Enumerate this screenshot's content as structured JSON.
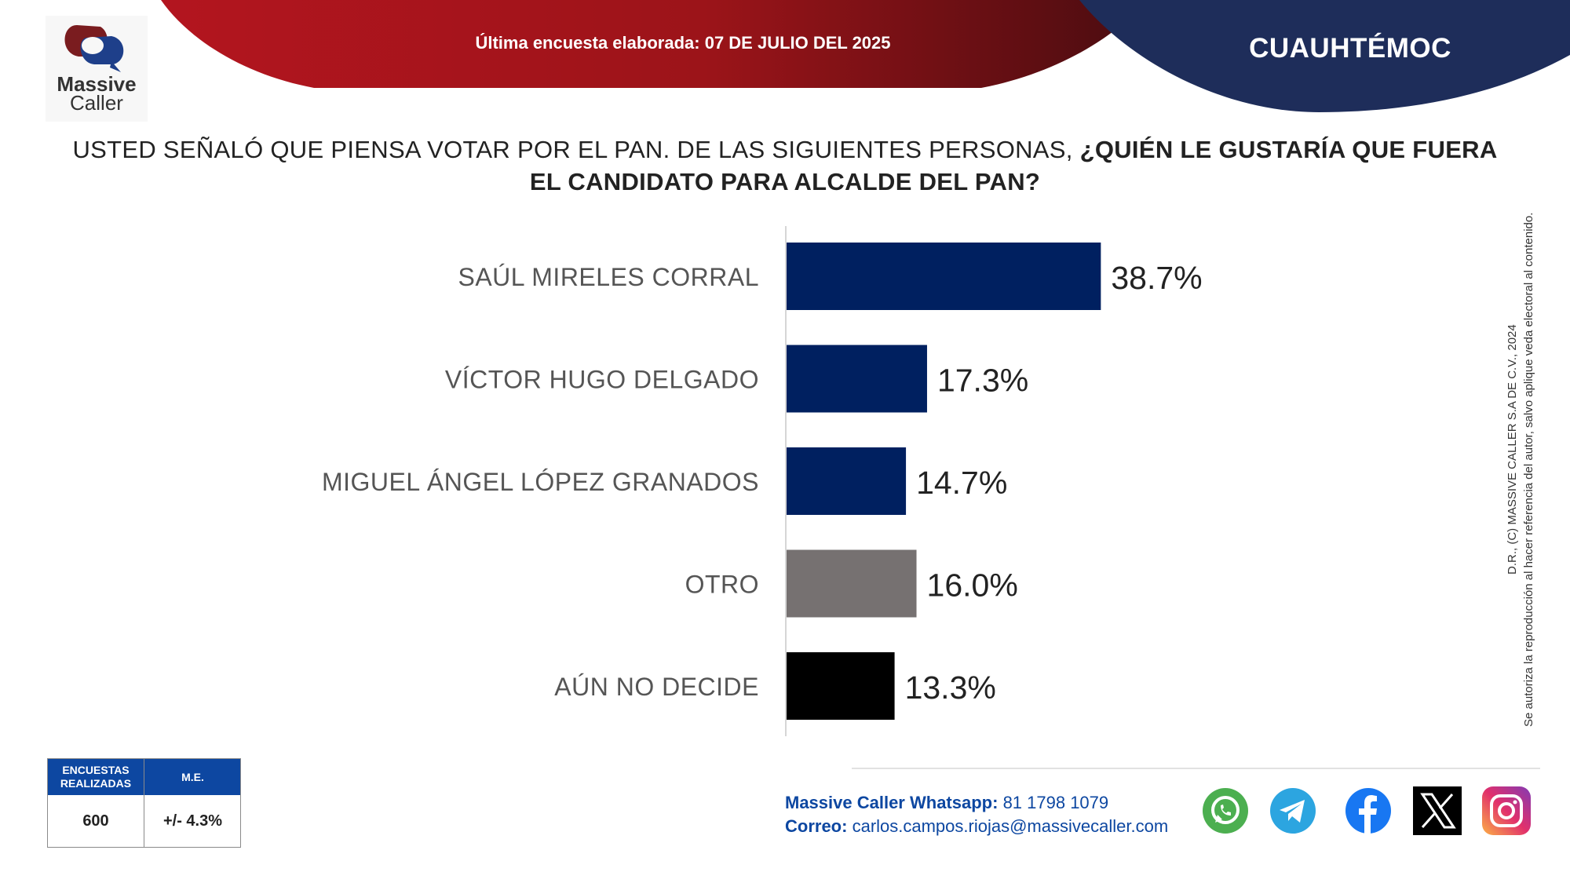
{
  "header": {
    "last_survey_label": "Última encuesta elaborada:",
    "last_survey_date": "07 DE JULIO DEL 2025",
    "region": "CUAUHTÉMOC"
  },
  "logo": {
    "line1": "Massive",
    "line2": "Caller"
  },
  "question": {
    "normal": "USTED SEÑALÓ QUE PIENSA VOTAR POR EL PAN. DE LAS SIGUIENTES PERSONAS, ",
    "bold": "¿QUIÉN LE GUSTARÍA QUE FUERA EL CANDIDATO PARA ALCALDE DEL PAN?"
  },
  "chart_data": {
    "type": "bar",
    "orientation": "horizontal",
    "categories": [
      "SAÚL MIRELES CORRAL",
      "VÍCTOR HUGO DELGADO",
      "MIGUEL ÁNGEL LÓPEZ GRANADOS",
      "OTRO",
      "AÚN NO DECIDE"
    ],
    "values": [
      38.7,
      17.3,
      14.7,
      16.0,
      13.3
    ],
    "value_labels": [
      "38.7%",
      "17.3%",
      "14.7%",
      "16.0%",
      "13.3%"
    ],
    "colors": [
      "#002060",
      "#002060",
      "#002060",
      "#767171",
      "#000000"
    ],
    "xlim": [
      0,
      100
    ],
    "grid": false
  },
  "copyright": {
    "line1": "D.R., (C) MASSIVE CALLER S.A DE C.V., 2024",
    "line2": "Se autoriza la reproducción al hacer referencia del autor, salvo aplique veda electoral al contenido."
  },
  "stats": {
    "surveys_header": "ENCUESTAS REALIZADAS",
    "me_header": "M.E.",
    "surveys_value": "600",
    "me_value": "+/- 4.3%"
  },
  "contact": {
    "whatsapp_label": "Massive Caller Whatsapp:",
    "whatsapp_number": "81 1798 1079",
    "email_label": "Correo:",
    "email": "carlos.campos.riojas@massivecaller.com"
  },
  "colors": {
    "header_red": "#b3151f",
    "header_navy": "#1e2d5a",
    "accent_blue": "#0d47a1"
  },
  "social_icons": [
    "whatsapp-icon",
    "telegram-icon",
    "facebook-icon",
    "x-icon",
    "instagram-icon"
  ]
}
